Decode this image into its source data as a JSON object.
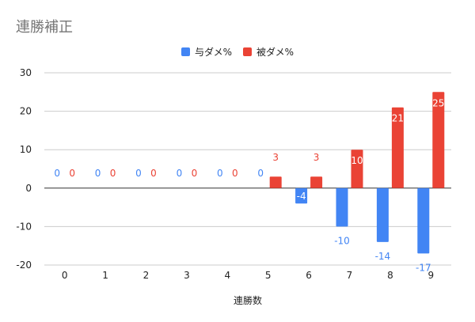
{
  "chart_data": {
    "type": "bar",
    "title": "連勝補正",
    "xlabel": "連勝数",
    "ylabel": "",
    "categories": [
      "0",
      "1",
      "2",
      "3",
      "4",
      "5",
      "6",
      "7",
      "8",
      "9"
    ],
    "series": [
      {
        "name": "与ダメ%",
        "color": "#4285f4",
        "values": [
          0,
          0,
          0,
          0,
          0,
          0,
          -4,
          -10,
          -14,
          -17
        ]
      },
      {
        "name": "被ダメ%",
        "color": "#ea4335",
        "values": [
          0,
          0,
          0,
          0,
          0,
          3,
          3,
          10,
          21,
          25
        ]
      }
    ],
    "ylim": [
      -20,
      30
    ],
    "yticks": [
      -20,
      -10,
      0,
      10,
      20,
      30
    ],
    "grid": true,
    "legend_position": "top-center",
    "data_labels": true
  }
}
